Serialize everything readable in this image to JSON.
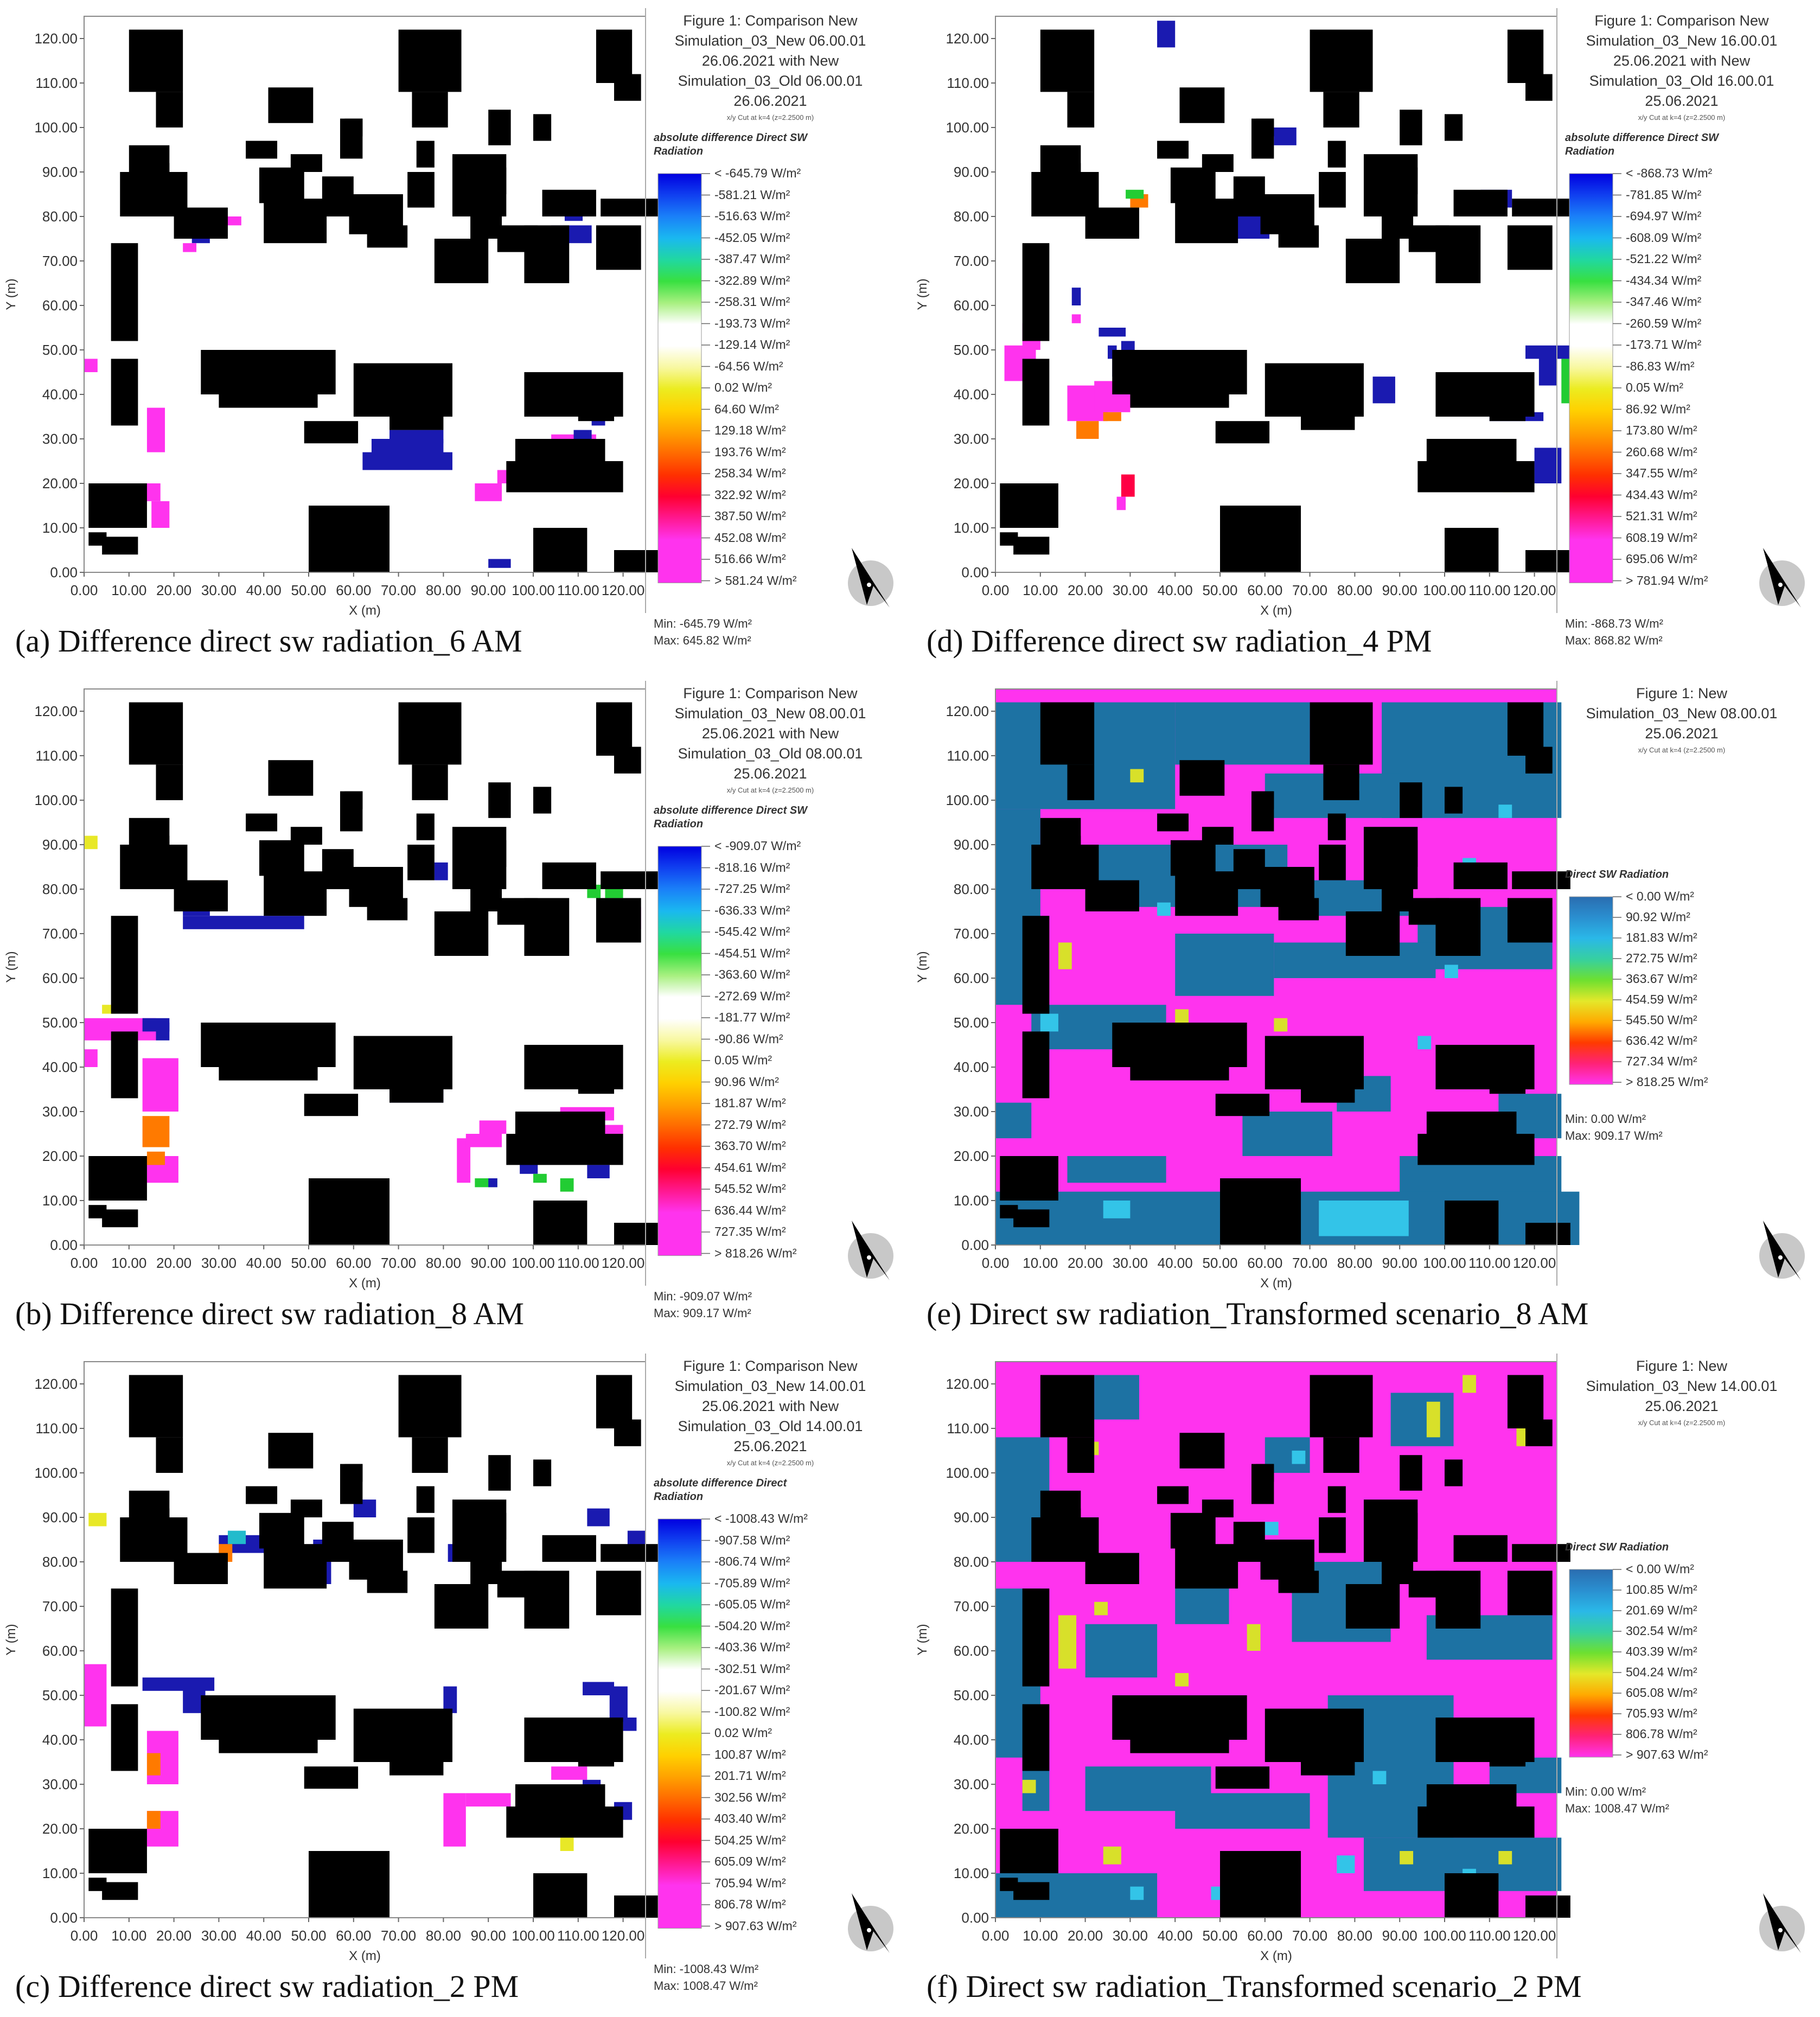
{
  "panels": [
    {
      "id": "a",
      "caption": "(a) Difference direct sw radiation_6 AM",
      "title": "Figure 1: Comparison New\nSimulation_03_New 06.00.01\n26.06.2021 with New\nSimulation_03_Old 06.00.01\n26.06.2021",
      "cut": "x/y Cut at k=4 (z=2.2500 m)",
      "legend_title": "absolute difference Direct SW\nRadiation",
      "scale_type": "diverging",
      "scale": [
        "< -645.79 W/m²",
        "-581.21 W/m²",
        "-516.63 W/m²",
        "-452.05 W/m²",
        "-387.47 W/m²",
        "-322.89 W/m²",
        "-258.31 W/m²",
        "-193.73 W/m²",
        "-129.14 W/m²",
        "-64.56 W/m²",
        "0.02 W/m²",
        "64.60 W/m²",
        "129.18 W/m²",
        "193.76 W/m²",
        "258.34 W/m²",
        "322.92 W/m²",
        "387.50 W/m²",
        "452.08 W/m²",
        "516.66 W/m²",
        "> 581.24 W/m²"
      ],
      "min": "Min: -645.79 W/m²",
      "max": "Max: 645.82 W/m²"
    },
    {
      "id": "d",
      "caption": "(d) Difference direct sw radiation_4 PM",
      "title": "Figure 1: Comparison New\nSimulation_03_New 16.00.01\n25.06.2021 with New\nSimulation_03_Old 16.00.01\n25.06.2021",
      "cut": "x/y Cut at k=4 (z=2.2500 m)",
      "legend_title": "absolute difference Direct SW\nRadiation",
      "scale_type": "diverging",
      "scale": [
        "< -868.73 W/m²",
        "-781.85 W/m²",
        "-694.97 W/m²",
        "-608.09 W/m²",
        "-521.22 W/m²",
        "-434.34 W/m²",
        "-347.46 W/m²",
        "-260.59 W/m²",
        "-173.71 W/m²",
        "-86.83 W/m²",
        "0.05 W/m²",
        "86.92 W/m²",
        "173.80 W/m²",
        "260.68 W/m²",
        "347.55 W/m²",
        "434.43 W/m²",
        "521.31 W/m²",
        "608.19 W/m²",
        "695.06 W/m²",
        "> 781.94 W/m²"
      ],
      "min": "Min: -868.73 W/m²",
      "max": "Max: 868.82 W/m²"
    },
    {
      "id": "b",
      "caption": "(b) Difference direct sw radiation_8 AM",
      "title": "Figure 1: Comparison New\nSimulation_03_New 08.00.01\n25.06.2021 with New\nSimulation_03_Old 08.00.01\n25.06.2021",
      "cut": "x/y Cut at k=4 (z=2.2500 m)",
      "legend_title": "absolute difference Direct SW\nRadiation",
      "scale_type": "diverging",
      "scale": [
        "< -909.07 W/m²",
        "-818.16 W/m²",
        "-727.25 W/m²",
        "-636.33 W/m²",
        "-545.42 W/m²",
        "-454.51 W/m²",
        "-363.60 W/m²",
        "-272.69 W/m²",
        "-181.77 W/m²",
        "-90.86 W/m²",
        "0.05 W/m²",
        "90.96 W/m²",
        "181.87 W/m²",
        "272.79 W/m²",
        "363.70 W/m²",
        "454.61 W/m²",
        "545.52 W/m²",
        "636.44 W/m²",
        "727.35 W/m²",
        "> 818.26 W/m²"
      ],
      "min": "Min: -909.07 W/m²",
      "max": "Max: 909.17 W/m²"
    },
    {
      "id": "e",
      "caption": "(e) Direct sw radiation_Transformed scenario_8 AM",
      "title": "Figure 1: New\nSimulation_03_New 08.00.01\n25.06.2021",
      "cut": "x/y Cut at k=4 (z=2.2500 m)",
      "legend_title": "Direct SW Radiation",
      "scale_type": "sequential",
      "scale": [
        "< 0.00 W/m²",
        "90.92 W/m²",
        "181.83 W/m²",
        "272.75 W/m²",
        "363.67 W/m²",
        "454.59 W/m²",
        "545.50 W/m²",
        "636.42 W/m²",
        "727.34 W/m²",
        "> 818.25 W/m²"
      ],
      "min": "Min: 0.00 W/m²",
      "max": "Max: 909.17 W/m²"
    },
    {
      "id": "c",
      "caption": "(c) Difference direct sw radiation_2 PM",
      "title": "Figure 1: Comparison New\nSimulation_03_New 14.00.01\n25.06.2021 with New\nSimulation_03_Old 14.00.01\n25.06.2021",
      "cut": "x/y Cut at k=4 (z=2.2500 m)",
      "legend_title": "absolute difference Direct\nRadiation",
      "scale_type": "diverging",
      "scale": [
        "< -1008.43 W/m²",
        "-907.58 W/m²",
        "-806.74 W/m²",
        "-705.89 W/m²",
        "-605.05 W/m²",
        "-504.20 W/m²",
        "-403.36 W/m²",
        "-302.51 W/m²",
        "-201.67 W/m²",
        "-100.82 W/m²",
        "0.02 W/m²",
        "100.87 W/m²",
        "201.71 W/m²",
        "302.56 W/m²",
        "403.40 W/m²",
        "504.25 W/m²",
        "605.09 W/m²",
        "705.94 W/m²",
        "806.78 W/m²",
        "> 907.63 W/m²"
      ],
      "min": "Min: -1008.43 W/m²",
      "max": "Max: 1008.47 W/m²"
    },
    {
      "id": "f",
      "caption": "(f)  Direct sw radiation_Transformed scenario_2 PM",
      "title": "Figure 1: New\nSimulation_03_New 14.00.01\n25.06.2021",
      "cut": "x/y Cut at k=4 (z=2.2500 m)",
      "legend_title": "Direct SW Radiation",
      "scale_type": "sequential",
      "scale": [
        "< 0.00 W/m²",
        "100.85 W/m²",
        "201.69 W/m²",
        "302.54 W/m²",
        "403.39 W/m²",
        "504.24 W/m²",
        "605.08 W/m²",
        "705.93 W/m²",
        "806.78 W/m²",
        "> 907.63 W/m²"
      ],
      "min": "Min: 0.00 W/m²",
      "max": "Max: 1008.47 W/m²"
    }
  ],
  "axes": {
    "xlabel": "X (m)",
    "ylabel": "Y (m)",
    "ticks": [
      "0.00",
      "10.00",
      "20.00",
      "30.00",
      "40.00",
      "50.00",
      "60.00",
      "70.00",
      "80.00",
      "90.00",
      "100.00",
      "110.00",
      "120.00"
    ]
  },
  "colors": {
    "building": "#000000",
    "open_ground": "#ffffff",
    "sunlit": "#ff33ee",
    "shaded": "#1d72a3",
    "diff_negative": "#1a1ab0",
    "diff_positive": "#ff33ee"
  }
}
